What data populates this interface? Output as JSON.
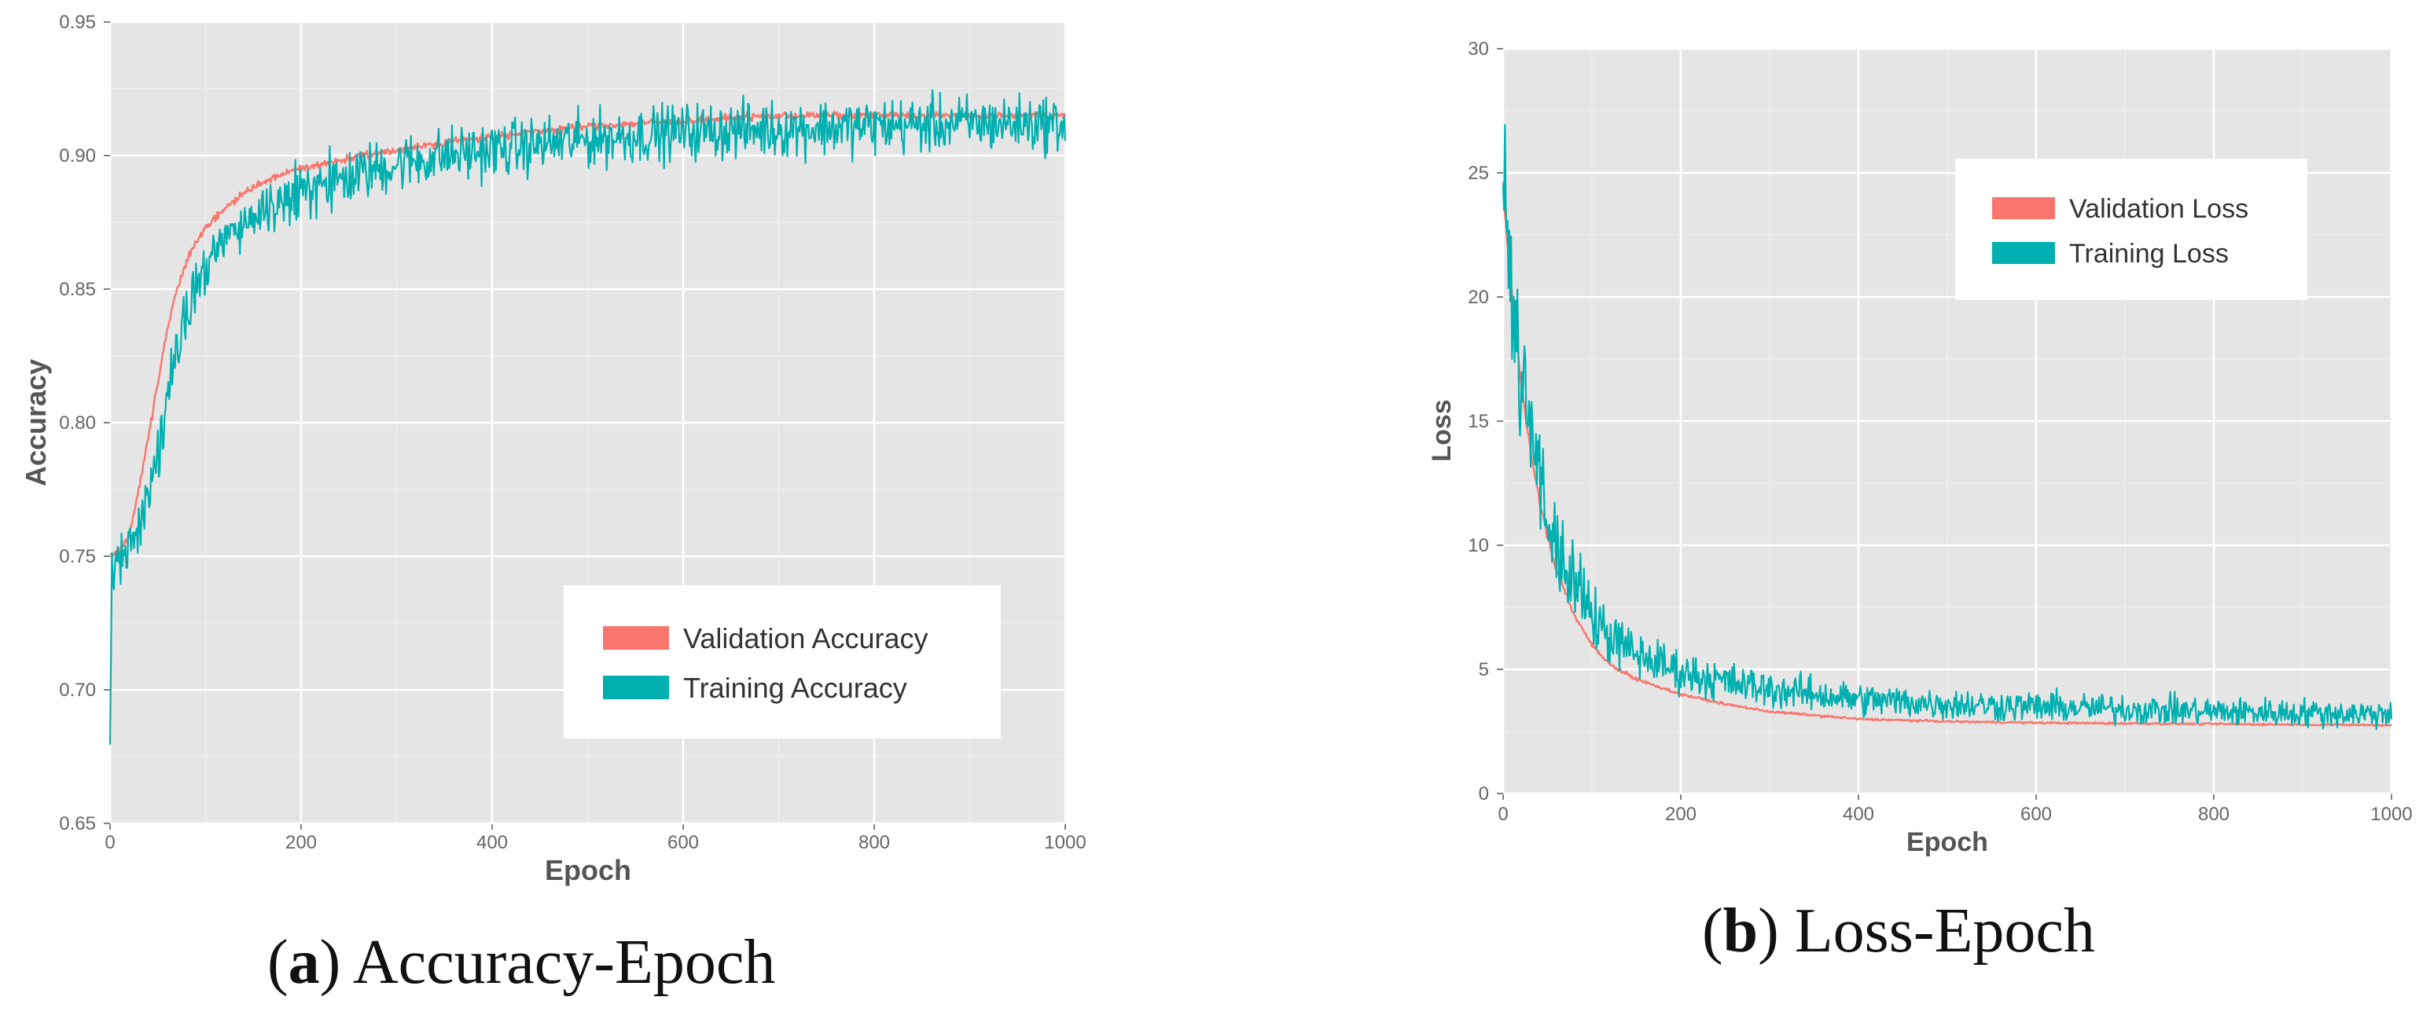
{
  "colors": {
    "panel_bg": "#e5e5e5",
    "grid": "#ffffff",
    "validation": "#f8766d",
    "training": "#00b0b0",
    "tick_text": "#666666",
    "axis_label": "#555555",
    "legend_bg": "#ffffff"
  },
  "chart_data": [
    {
      "type": "line",
      "id": "accuracy",
      "title": "",
      "xlabel": "Epoch",
      "ylabel": "Accuracy",
      "xlim": [
        0,
        1000
      ],
      "ylim": [
        0.65,
        0.95
      ],
      "x_ticks": [
        0,
        200,
        400,
        600,
        800,
        1000
      ],
      "x_tick_labels": [
        "0",
        "200",
        "400",
        "600",
        "800",
        "1000"
      ],
      "y_ticks": [
        0.65,
        0.7,
        0.75,
        0.8,
        0.85,
        0.9,
        0.95
      ],
      "y_tick_labels": [
        "0.65",
        "0.70",
        "0.75",
        "0.80",
        "0.85",
        "0.90",
        "0.95"
      ],
      "grid": true,
      "legend_position": "bottom-right",
      "series": [
        {
          "name": "Validation Accuracy",
          "color": "#f8766d",
          "noise": 0.0012,
          "x": [
            0,
            10,
            20,
            30,
            40,
            50,
            60,
            70,
            80,
            90,
            100,
            120,
            140,
            160,
            180,
            200,
            250,
            300,
            350,
            400,
            450,
            500,
            600,
            700,
            800,
            900,
            1000
          ],
          "values": [
            0.75,
            0.752,
            0.758,
            0.775,
            0.795,
            0.815,
            0.835,
            0.85,
            0.86,
            0.868,
            0.873,
            0.88,
            0.886,
            0.89,
            0.893,
            0.895,
            0.899,
            0.902,
            0.905,
            0.907,
            0.909,
            0.911,
            0.913,
            0.915,
            0.915,
            0.915,
            0.915
          ]
        },
        {
          "name": "Training Accuracy",
          "color": "#00b0b0",
          "noise": 0.009,
          "x": [
            0,
            2,
            5,
            10,
            20,
            30,
            40,
            50,
            60,
            70,
            80,
            90,
            100,
            120,
            140,
            160,
            180,
            200,
            250,
            300,
            350,
            400,
            450,
            500,
            600,
            700,
            800,
            900,
            1000
          ],
          "values": [
            0.678,
            0.745,
            0.748,
            0.75,
            0.752,
            0.758,
            0.772,
            0.79,
            0.808,
            0.825,
            0.84,
            0.85,
            0.858,
            0.868,
            0.875,
            0.88,
            0.883,
            0.886,
            0.892,
            0.897,
            0.9,
            0.902,
            0.904,
            0.906,
            0.909,
            0.91,
            0.911,
            0.912,
            0.912
          ]
        }
      ]
    },
    {
      "type": "line",
      "id": "loss",
      "title": "",
      "xlabel": "Epoch",
      "ylabel": "Loss",
      "xlim": [
        0,
        1000
      ],
      "ylim": [
        0,
        30
      ],
      "x_ticks": [
        0,
        200,
        400,
        600,
        800,
        1000
      ],
      "x_tick_labels": [
        "0",
        "200",
        "400",
        "600",
        "800",
        "1000"
      ],
      "y_ticks": [
        0,
        5,
        10,
        15,
        20,
        25,
        30
      ],
      "y_tick_labels": [
        "0",
        "5",
        "10",
        "15",
        "20",
        "25",
        "30"
      ],
      "grid": true,
      "legend_position": "top-right",
      "series": [
        {
          "name": "Validation Loss",
          "color": "#f8766d",
          "noise": 0.06,
          "x": [
            0,
            5,
            10,
            20,
            30,
            40,
            50,
            60,
            80,
            100,
            120,
            150,
            200,
            250,
            300,
            400,
            500,
            600,
            800,
            1000
          ],
          "values": [
            24.5,
            22.0,
            20.0,
            16.5,
            14.0,
            12.0,
            10.3,
            9.0,
            7.2,
            6.0,
            5.2,
            4.6,
            4.0,
            3.6,
            3.3,
            3.0,
            2.9,
            2.85,
            2.8,
            2.75
          ]
        },
        {
          "name": "Training Loss",
          "color": "#00b0b0",
          "noise": 0.75,
          "x": [
            0,
            5,
            10,
            20,
            30,
            40,
            50,
            60,
            80,
            100,
            120,
            150,
            200,
            250,
            300,
            400,
            500,
            600,
            800,
            1000
          ],
          "values": [
            24.0,
            22.0,
            20.0,
            17.0,
            14.5,
            12.8,
            11.3,
            10.0,
            8.4,
            7.1,
            6.3,
            5.6,
            4.9,
            4.5,
            4.2,
            3.8,
            3.6,
            3.5,
            3.3,
            3.2
          ]
        }
      ]
    }
  ],
  "captions": [
    {
      "label": "a",
      "text": ") Accuracy-Epoch"
    },
    {
      "label": "b",
      "text": ") Loss-Epoch"
    }
  ]
}
